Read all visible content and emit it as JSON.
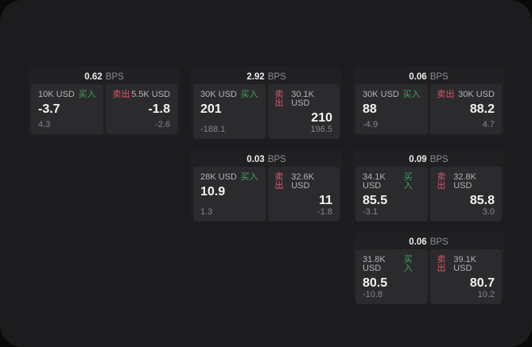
{
  "accent": {
    "green": "#3da45f",
    "red": "#d8566a"
  },
  "labels": {
    "bps": "BPS",
    "buy": "买入",
    "sell": "卖出"
  },
  "cards": [
    {
      "col": 1,
      "row": 1,
      "bps": "0.62",
      "buy": {
        "amount": "10K USD",
        "value": "-3.7",
        "sub": "4.3"
      },
      "sell": {
        "amount": "5.5K USD",
        "value": "-1.8",
        "sub": "-2.6"
      }
    },
    {
      "col": 2,
      "row": 1,
      "bps": "2.92",
      "buy": {
        "amount": "30K USD",
        "value": "201",
        "sub": "-188.1"
      },
      "sell": {
        "amount": "30.1K USD",
        "value": "210",
        "sub": "196.5"
      }
    },
    {
      "col": 3,
      "row": 1,
      "bps": "0.06",
      "buy": {
        "amount": "30K USD",
        "value": "88",
        "sub": "-4.9"
      },
      "sell": {
        "amount": "30K USD",
        "value": "88.2",
        "sub": "4.7"
      }
    },
    {
      "col": 2,
      "row": 2,
      "bps": "0.03",
      "buy": {
        "amount": "28K USD",
        "value": "10.9",
        "sub": "1.3"
      },
      "sell": {
        "amount": "32.6K USD",
        "value": "11",
        "sub": "-1.8"
      }
    },
    {
      "col": 3,
      "row": 2,
      "bps": "0.09",
      "buy": {
        "amount": "34.1K USD",
        "value": "85.5",
        "sub": "-3.1"
      },
      "sell": {
        "amount": "32.8K USD",
        "value": "85.8",
        "sub": "3.0"
      }
    },
    {
      "col": 3,
      "row": 3,
      "bps": "0.06",
      "buy": {
        "amount": "31.8K USD",
        "value": "80.5",
        "sub": "-10.8"
      },
      "sell": {
        "amount": "39.1K USD",
        "value": "80.7",
        "sub": "10.2"
      }
    }
  ]
}
